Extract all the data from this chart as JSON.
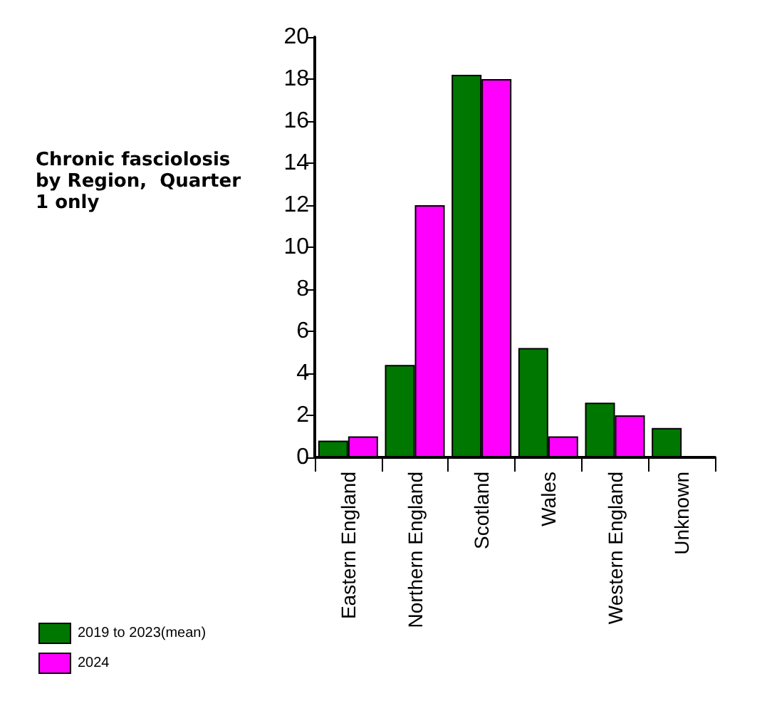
{
  "chart_data": {
    "type": "bar",
    "title": "Chronic fasciolosis by Region,  Quarter 1 only",
    "categories": [
      "Eastern England",
      "Northern England",
      "Scotland",
      "Wales",
      "Western England",
      "Unknown"
    ],
    "series": [
      {
        "name": "2019 to 2023(mean)",
        "color": "#007700",
        "values": [
          0.8,
          4.4,
          18.2,
          5.2,
          2.6,
          1.4
        ]
      },
      {
        "name": "2024",
        "color": "#ff00ff",
        "values": [
          1.0,
          12,
          18,
          1.0,
          2.0,
          null
        ]
      }
    ],
    "ylim": [
      0,
      20
    ],
    "yticks": [
      0,
      2,
      4,
      6,
      8,
      10,
      12,
      14,
      16,
      18,
      20
    ],
    "grid": false,
    "legend": "bottom left"
  }
}
